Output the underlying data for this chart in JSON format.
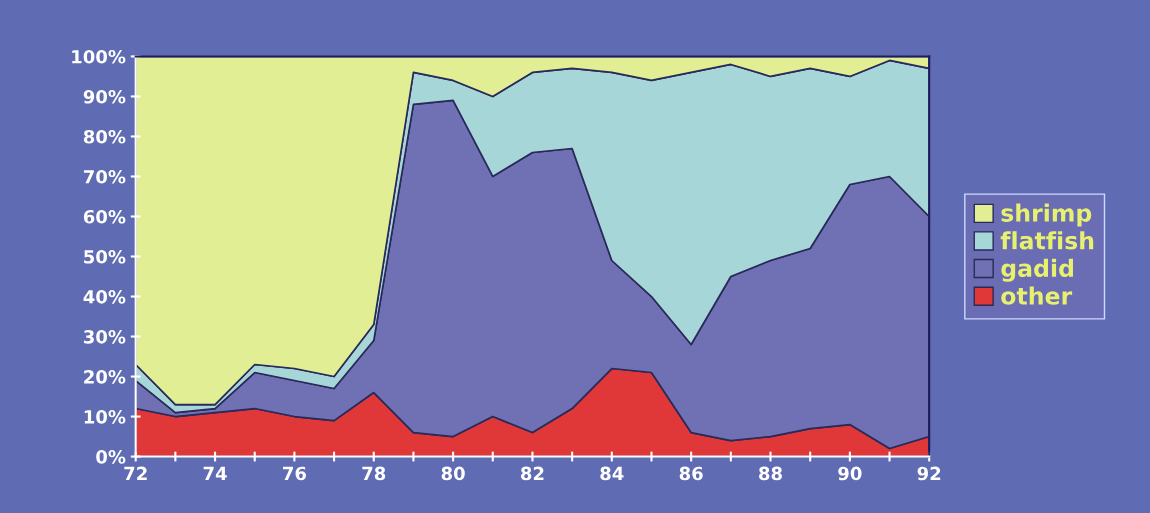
{
  "chart_data": {
    "type": "area",
    "stacked": true,
    "x": [
      72,
      73,
      74,
      75,
      76,
      77,
      78,
      79,
      80,
      81,
      82,
      83,
      84,
      85,
      86,
      87,
      88,
      89,
      90,
      91,
      92
    ],
    "series": [
      {
        "name": "other",
        "color": "#e03838",
        "values": [
          12,
          10,
          11,
          12,
          10,
          9,
          16,
          6,
          5,
          10,
          6,
          12,
          22,
          21,
          6,
          4,
          5,
          7,
          8,
          2,
          5
        ]
      },
      {
        "name": "gadid",
        "color": "#7070b4",
        "values": [
          7,
          1,
          1,
          9,
          9,
          8,
          13,
          82,
          84,
          60,
          70,
          65,
          27,
          19,
          22,
          41,
          44,
          45,
          60,
          68,
          55
        ]
      },
      {
        "name": "flatfish",
        "color": "#a6d6d8",
        "values": [
          4,
          2,
          1,
          2,
          3,
          3,
          4,
          8,
          5,
          20,
          20,
          20,
          47,
          54,
          68,
          53,
          46,
          45,
          27,
          29,
          37
        ]
      },
      {
        "name": "shrimp",
        "color": "#e2ee94",
        "values": [
          77,
          87,
          87,
          77,
          78,
          80,
          67,
          4,
          6,
          10,
          4,
          3,
          4,
          6,
          4,
          2,
          5,
          3,
          5,
          1,
          3
        ]
      }
    ],
    "xlim": [
      72,
      92
    ],
    "xticks": [
      72,
      {
        "value": 73,
        "label": null
      },
      74,
      {
        "value": 75,
        "label": null
      },
      76,
      {
        "value": 77,
        "label": null
      },
      78,
      {
        "value": 79,
        "label": null
      },
      80,
      {
        "value": 81,
        "label": null
      },
      82,
      {
        "value": 83,
        "label": null
      },
      84,
      {
        "value": 85,
        "label": null
      },
      86,
      {
        "value": 87,
        "label": null
      },
      88,
      {
        "value": 89,
        "label": null
      },
      90,
      {
        "value": 91,
        "label": null
      },
      92
    ],
    "ylim": [
      0,
      100
    ],
    "yticks": [
      {
        "value": 0,
        "label": "0%"
      },
      {
        "value": 10,
        "label": "10%"
      },
      {
        "value": 20,
        "label": "20%"
      },
      {
        "value": 30,
        "label": "30%"
      },
      {
        "value": 40,
        "label": "40%"
      },
      {
        "value": 50,
        "label": "50%"
      },
      {
        "value": 60,
        "label": "60%"
      },
      {
        "value": 70,
        "label": "70%"
      },
      {
        "value": 80,
        "label": "80%"
      },
      {
        "value": 90,
        "label": "90%"
      },
      {
        "value": 100,
        "label": "100%"
      }
    ],
    "grid": false,
    "legend": "right"
  }
}
